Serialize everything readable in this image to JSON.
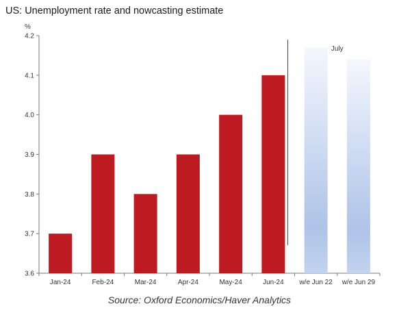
{
  "chart_data": {
    "type": "bar",
    "title": "US: Unemployment rate and nowcasting estimate",
    "ylabel": "%",
    "xlabel": "",
    "ylim": [
      3.6,
      4.2
    ],
    "yticks": [
      "4.2",
      "4.1",
      "4.0",
      "3.9",
      "3.8",
      "3.7",
      "3.6"
    ],
    "categories": [
      "Jan-24",
      "Feb-24",
      "Mar-24",
      "Apr-24",
      "May-24",
      "Jun-24",
      "w/e Jun 22",
      "w/e Jun 29"
    ],
    "series": [
      {
        "values": [
          3.7,
          3.9,
          3.8,
          3.9,
          4.0,
          4.1,
          null,
          null
        ],
        "color": "#be1a22"
      },
      {
        "values": [
          null,
          null,
          null,
          null,
          null,
          null,
          4.17,
          4.14
        ],
        "color": "#aec3e8"
      }
    ],
    "annotation": {
      "text": "July"
    },
    "grid": false,
    "source": "Source: Oxford Economics/Haver Analytics"
  }
}
